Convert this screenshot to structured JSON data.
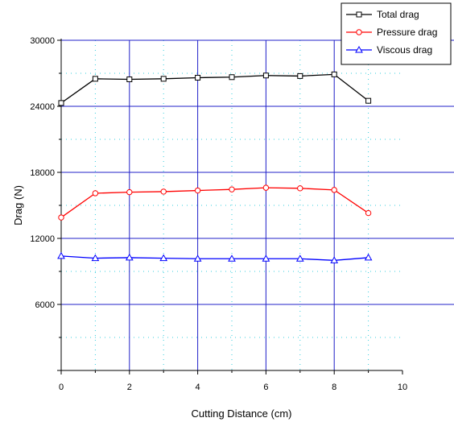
{
  "chart_data": {
    "type": "line",
    "xlabel": "Cutting Distance (cm)",
    "ylabel": "Drag (N)",
    "xlim": [
      0,
      10
    ],
    "ylim": [
      0,
      30000
    ],
    "xticks": [
      0,
      2,
      4,
      6,
      8,
      10
    ],
    "xtick_labels": [
      "0",
      "2",
      "4",
      "6",
      "8",
      "10"
    ],
    "yticks": [
      6000,
      12000,
      18000,
      24000,
      30000
    ],
    "ytick_labels": [
      "6000",
      "12000",
      "18000",
      "24000",
      "30000"
    ],
    "grid": "major vertical and horizontal lines blue, minor lines dotted cyan",
    "legend_position": "top-right",
    "x": [
      0,
      1,
      2,
      3,
      4,
      5,
      6,
      7,
      8,
      9
    ],
    "series": [
      {
        "name": "Total drag",
        "color": "#000000",
        "marker": "square",
        "values": [
          24300,
          26500,
          26450,
          26500,
          26600,
          26650,
          26800,
          26750,
          26900,
          24500
        ]
      },
      {
        "name": "Pressure drag",
        "color": "#ff0000",
        "marker": "circle",
        "values": [
          13900,
          16100,
          16200,
          16250,
          16350,
          16450,
          16600,
          16550,
          16400,
          14300
        ]
      },
      {
        "name": "Viscous drag",
        "color": "#0000ff",
        "marker": "triangle",
        "values": [
          10400,
          10200,
          10250,
          10200,
          10150,
          10150,
          10150,
          10150,
          10000,
          10250
        ]
      }
    ]
  }
}
